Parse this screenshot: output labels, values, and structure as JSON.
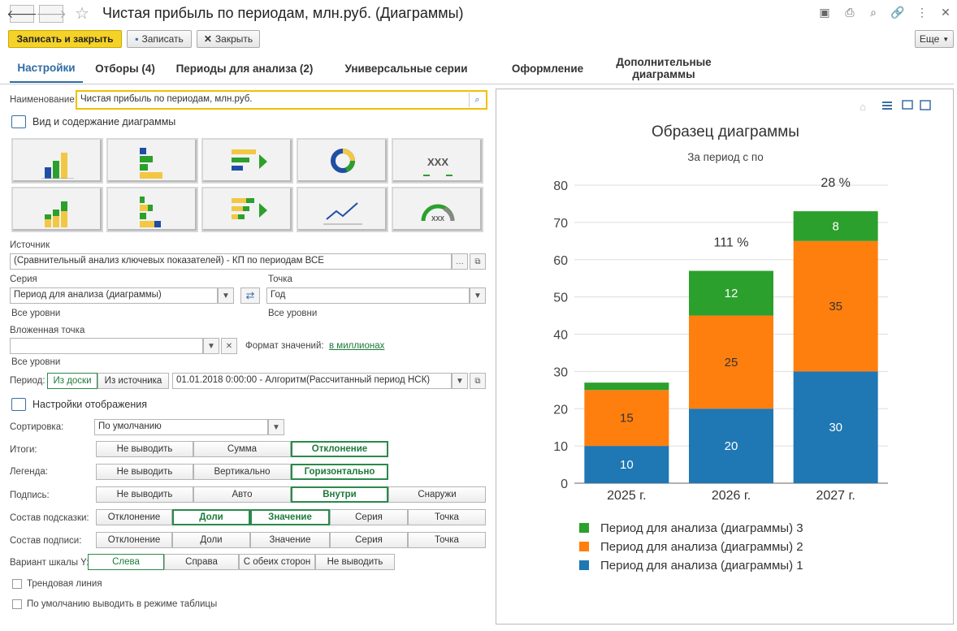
{
  "window": {
    "title": "Чистая прибыль по периодам, млн.руб. (Диаграммы)"
  },
  "toolbar": {
    "save_close": "Записать и закрыть",
    "save": "Записать",
    "close": "Закрыть",
    "more": "Еще"
  },
  "tabs": [
    {
      "label": "Настройки",
      "active": true
    },
    {
      "label": "Отборы (4)"
    },
    {
      "label": "Периоды для анализа (2)"
    },
    {
      "label": "Универсальные серии"
    },
    {
      "label": "Оформление"
    },
    {
      "label": "Дополнительные диаграммы"
    }
  ],
  "form": {
    "name_label": "Наименование:",
    "name_value": "Чистая прибыль по периодам, млн.руб.",
    "section_view": "Вид и содержание диаграммы",
    "source_label": "Источник",
    "source_value": "(Сравнительный анализ ключевых показателей) - КП по периодам ВСЕ",
    "series_label": "Серия",
    "series_value": "Период для анализа (диаграммы)",
    "series_levels": "Все уровни",
    "point_label": "Точка",
    "point_value": "Год",
    "point_levels": "Все уровни",
    "nested_label": "Вложенная точка",
    "nested_value": "",
    "nested_levels": "Все уровни",
    "format_label": "Формат значений:",
    "format_value": "в миллионах",
    "period_label": "Период:",
    "period_from_board": "Из доски",
    "period_from_source": "Из источника",
    "period_value": "01.01.2018 0:00:00 - Алгоритм(Рассчитанный период НСК)",
    "section_display": "Настройки отображения",
    "sort_label": "Сортировка:",
    "sort_value": "По умолчанию",
    "totals_label": "Итоги:",
    "totals": [
      "Не выводить",
      "Сумма",
      "Отклонение"
    ],
    "legend_label": "Легенда:",
    "legend": [
      "Не выводить",
      "Вертикально",
      "Горизонтально"
    ],
    "caption_label": "Подпись:",
    "caption": [
      "Не выводить",
      "Авто",
      "Внутри",
      "Снаружи"
    ],
    "tooltip_label": "Состав подсказки:",
    "tooltip": [
      "Отклонение",
      "Доли",
      "Значение",
      "Серия",
      "Точка"
    ],
    "captioncomp_label": "Состав подписи:",
    "captioncomp": [
      "Отклонение",
      "Доли",
      "Значение",
      "Серия",
      "Точка"
    ],
    "yscale_label": "Вариант шкалы Y:",
    "yscale": [
      "Слева",
      "Справа",
      "С обеих сторон",
      "Не выводить"
    ],
    "trend_label": "Трендовая линия",
    "table_label": "По умолчанию выводить в режиме таблицы"
  },
  "chart_data": {
    "type": "bar",
    "stacked": true,
    "title": "Образец диаграммы",
    "subtitle": "За период с по",
    "categories": [
      "2025 г.",
      "2026 г.",
      "2027 г."
    ],
    "ylim": [
      0,
      80
    ],
    "yticks": [
      0,
      10,
      20,
      30,
      40,
      50,
      60,
      70,
      80
    ],
    "series": [
      {
        "name": "Период для анализа (диаграммы) 1",
        "values": [
          10,
          20,
          30
        ],
        "color": "#1f77b4"
      },
      {
        "name": "Период для анализа (диаграммы) 2",
        "values": [
          15,
          25,
          35
        ],
        "color": "#ff7f0e"
      },
      {
        "name": "Период для анализа (диаграммы) 3",
        "values": [
          2,
          12,
          8
        ],
        "color": "#2ca02c"
      }
    ],
    "bar_labels": [
      [
        "10",
        "15",
        ""
      ],
      [
        "20",
        "25",
        "12"
      ],
      [
        "30",
        "35",
        "8"
      ]
    ],
    "annotations": [
      "",
      "111 %",
      "28 %"
    ],
    "legend_position": "bottom"
  }
}
